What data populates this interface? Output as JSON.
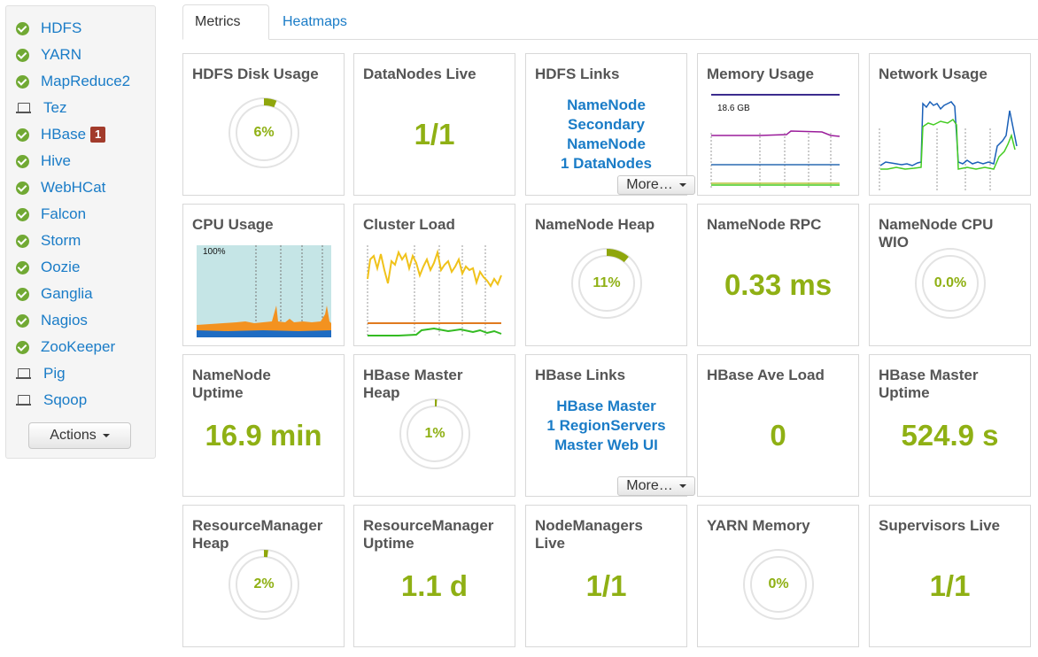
{
  "sidebar": {
    "services": [
      {
        "name": "HDFS",
        "status": "check-circle-icon"
      },
      {
        "name": "YARN",
        "status": "check-circle-icon"
      },
      {
        "name": "MapReduce2",
        "status": "check-circle-icon"
      },
      {
        "name": "Tez",
        "status": "laptop-icon"
      },
      {
        "name": "HBase",
        "status": "check-circle-icon",
        "alerts": "1"
      },
      {
        "name": "Hive",
        "status": "check-circle-icon"
      },
      {
        "name": "WebHCat",
        "status": "check-circle-icon"
      },
      {
        "name": "Falcon",
        "status": "check-circle-icon"
      },
      {
        "name": "Storm",
        "status": "check-circle-icon"
      },
      {
        "name": "Oozie",
        "status": "check-circle-icon"
      },
      {
        "name": "Ganglia",
        "status": "check-circle-icon"
      },
      {
        "name": "Nagios",
        "status": "check-circle-icon"
      },
      {
        "name": "ZooKeeper",
        "status": "check-circle-icon"
      },
      {
        "name": "Pig",
        "status": "laptop-icon"
      },
      {
        "name": "Sqoop",
        "status": "laptop-icon"
      }
    ],
    "actions_label": "Actions"
  },
  "tabs": {
    "metrics": "Metrics",
    "heatmaps": "Heatmaps"
  },
  "colors": {
    "accent_green": "#8fb014",
    "link_blue": "#1a7cc7",
    "ok_green": "#71a934",
    "alert_red": "#a23b2b"
  },
  "widgets": {
    "hdfs_disk": {
      "title": "HDFS Disk Usage",
      "value": "6%",
      "fraction": 0.06
    },
    "datanodes_live": {
      "title": "DataNodes Live",
      "value": "1/1"
    },
    "hdfs_links": {
      "title": "HDFS Links",
      "links": [
        "NameNode",
        "Secondary NameNode",
        "1 DataNodes"
      ],
      "more": "More…"
    },
    "memory_usage": {
      "title": "Memory Usage",
      "label": "18.6 GB"
    },
    "network_usage": {
      "title": "Network Usage"
    },
    "cpu_usage": {
      "title": "CPU Usage",
      "label": "100%"
    },
    "cluster_load": {
      "title": "Cluster Load"
    },
    "namenode_heap": {
      "title": "NameNode Heap",
      "value": "11%",
      "fraction": 0.11
    },
    "namenode_rpc": {
      "title": "NameNode RPC",
      "value": "0.33 ms"
    },
    "namenode_cpu_wio": {
      "title": "NameNode CPU WIO",
      "value": "0.0%",
      "fraction": 0.0
    },
    "namenode_uptime": {
      "title": "NameNode Uptime",
      "value": "16.9 min"
    },
    "hbase_master_heap": {
      "title": "HBase Master Heap",
      "value": "1%",
      "fraction": 0.01
    },
    "hbase_links": {
      "title": "HBase Links",
      "links": [
        "HBase Master",
        "1 RegionServers",
        "Master Web UI"
      ],
      "more": "More…"
    },
    "hbase_ave_load": {
      "title": "HBase Ave Load",
      "value": "0"
    },
    "hbase_master_uptime": {
      "title": "HBase Master Uptime",
      "value": "524.9 s"
    },
    "rm_heap": {
      "title": "ResourceManager Heap",
      "value": "2%",
      "fraction": 0.02
    },
    "rm_uptime": {
      "title": "ResourceManager Uptime",
      "value": "1.1 d"
    },
    "nodemanagers_live": {
      "title": "NodeManagers Live",
      "value": "1/1"
    },
    "yarn_memory": {
      "title": "YARN Memory",
      "value": "0%",
      "fraction": 0.0
    },
    "supervisors_live": {
      "title": "Supervisors Live",
      "value": "1/1"
    }
  }
}
